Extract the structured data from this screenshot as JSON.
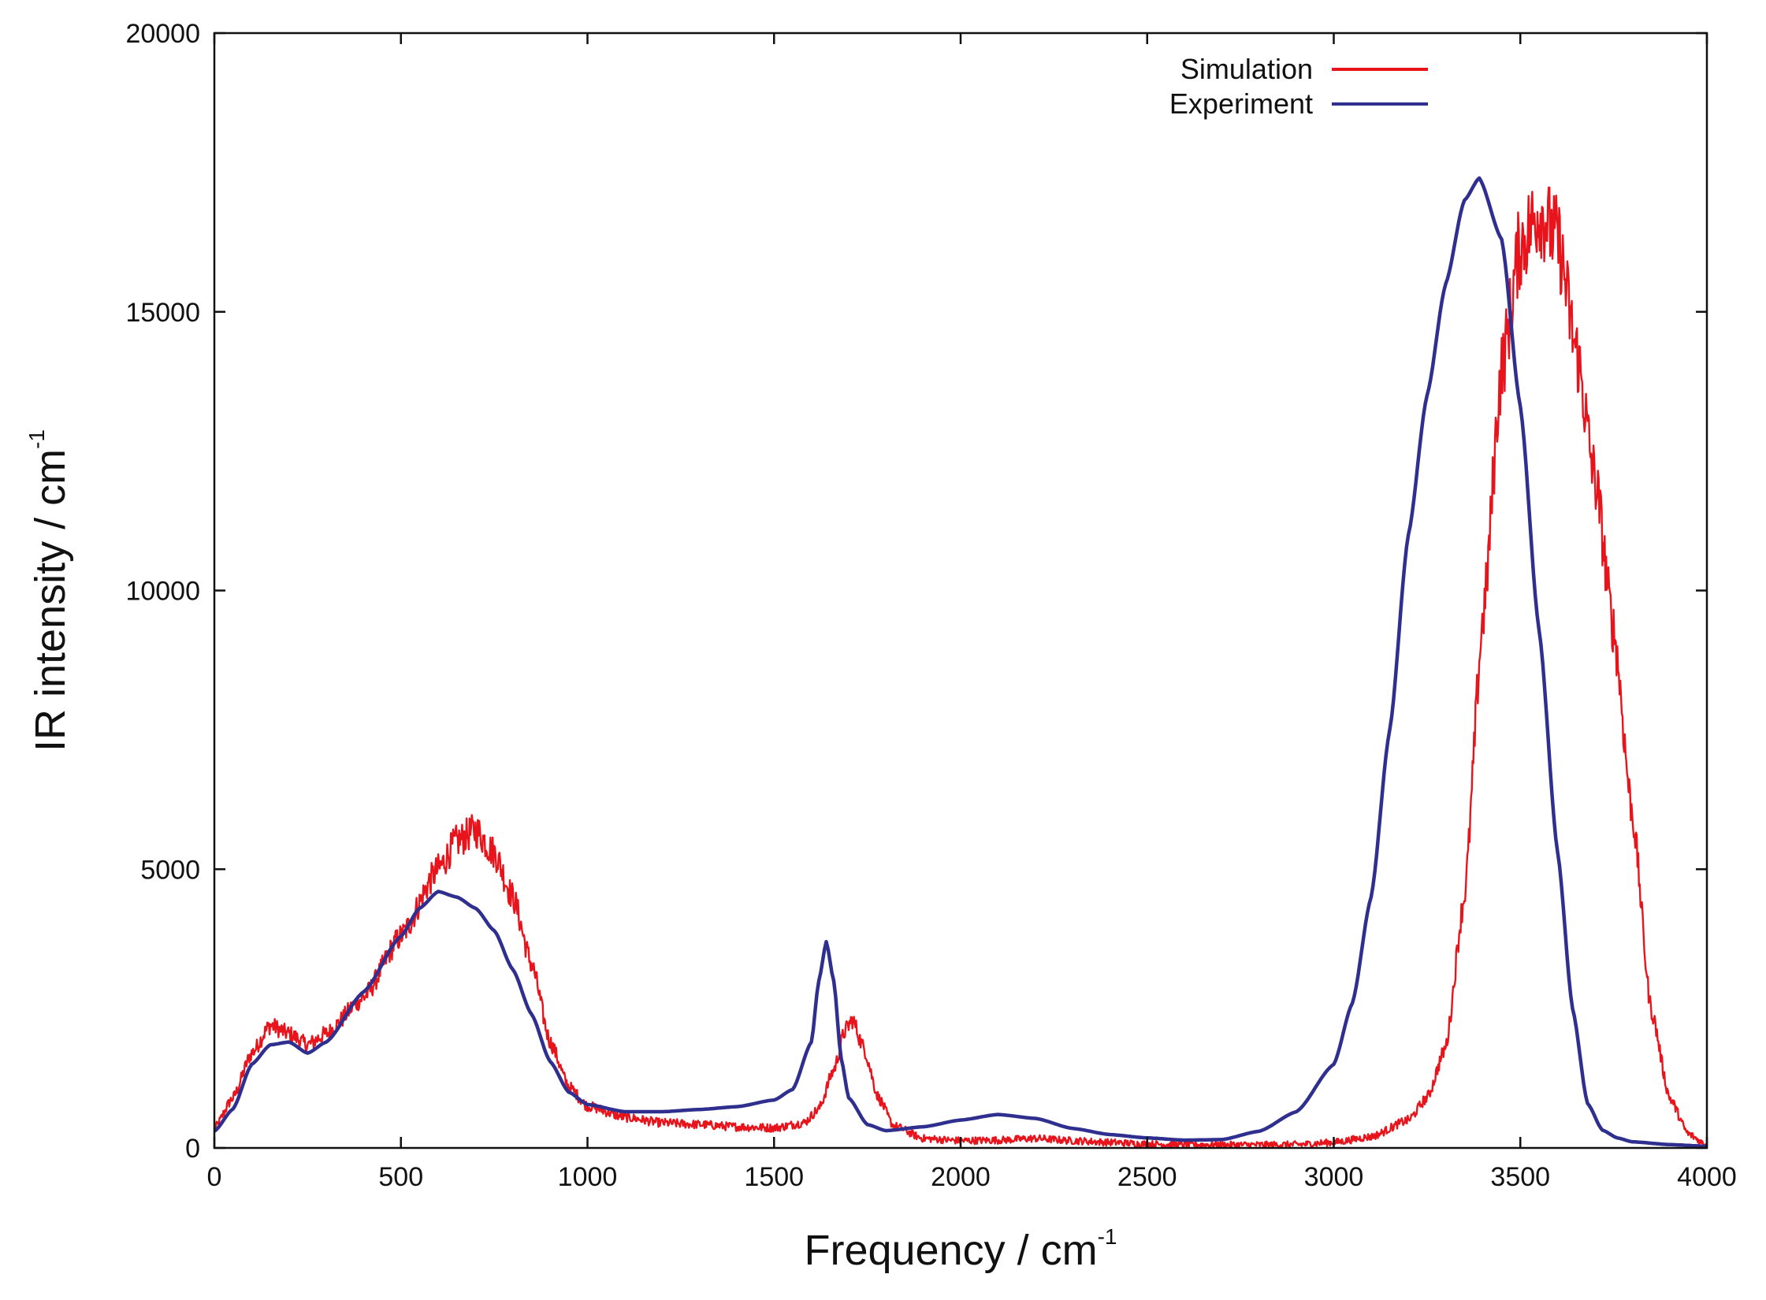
{
  "chart_data": {
    "type": "line",
    "xlabel": "Frequency / cm",
    "xlabel_sup": "-1",
    "ylabel": "IR intensity / cm",
    "ylabel_sup": "-1",
    "xlim": [
      0,
      4000
    ],
    "ylim": [
      0,
      20000
    ],
    "xticks": [
      0,
      500,
      1000,
      1500,
      2000,
      2500,
      3000,
      3500,
      4000
    ],
    "yticks": [
      0,
      5000,
      10000,
      15000,
      20000
    ],
    "grid": false,
    "legend_position": "top-right",
    "series": [
      {
        "name": "Simulation",
        "color": "#e8141c",
        "noisy": true,
        "x": [
          0,
          50,
          100,
          150,
          200,
          250,
          300,
          400,
          500,
          600,
          650,
          700,
          750,
          800,
          850,
          900,
          950,
          1000,
          1100,
          1200,
          1300,
          1400,
          1500,
          1580,
          1620,
          1660,
          1690,
          1710,
          1740,
          1780,
          1820,
          1900,
          2000,
          2100,
          2200,
          2300,
          2400,
          2500,
          2600,
          2700,
          2800,
          2900,
          3000,
          3100,
          3200,
          3250,
          3300,
          3350,
          3400,
          3450,
          3500,
          3550,
          3600,
          3650,
          3700,
          3750,
          3800,
          3850,
          3900,
          3950,
          4000
        ],
        "y": [
          350,
          900,
          1700,
          2200,
          2050,
          1850,
          2050,
          2700,
          3800,
          5000,
          5500,
          5700,
          5300,
          4500,
          3300,
          1900,
          1100,
          750,
          550,
          450,
          420,
          380,
          360,
          450,
          700,
          1400,
          2100,
          2300,
          1800,
          900,
          400,
          170,
          130,
          140,
          170,
          130,
          100,
          70,
          60,
          55,
          55,
          60,
          100,
          200,
          500,
          900,
          1800,
          4500,
          9500,
          14000,
          16200,
          16800,
          16300,
          14300,
          12000,
          9300,
          6000,
          2500,
          900,
          250,
          50
        ]
      },
      {
        "name": "Experiment",
        "color": "#2e2f8f",
        "noisy": false,
        "x": [
          0,
          50,
          100,
          150,
          200,
          250,
          300,
          400,
          500,
          550,
          600,
          650,
          700,
          750,
          800,
          850,
          900,
          950,
          1000,
          1100,
          1200,
          1300,
          1400,
          1500,
          1550,
          1600,
          1620,
          1640,
          1660,
          1680,
          1700,
          1750,
          1800,
          1900,
          2000,
          2100,
          2200,
          2300,
          2400,
          2500,
          2600,
          2700,
          2800,
          2900,
          3000,
          3050,
          3100,
          3150,
          3200,
          3250,
          3300,
          3350,
          3390,
          3450,
          3500,
          3550,
          3600,
          3640,
          3680,
          3720,
          3760,
          3800,
          3900,
          4000
        ],
        "y": [
          300,
          700,
          1500,
          1850,
          1900,
          1700,
          1900,
          2800,
          3800,
          4300,
          4600,
          4500,
          4300,
          3900,
          3200,
          2400,
          1550,
          1000,
          780,
          650,
          650,
          690,
          740,
          860,
          1050,
          1900,
          3000,
          3700,
          3000,
          1600,
          900,
          420,
          310,
          380,
          500,
          600,
          530,
          350,
          240,
          180,
          140,
          150,
          300,
          650,
          1500,
          2600,
          4500,
          7500,
          11000,
          13500,
          15500,
          17000,
          17400,
          16300,
          13300,
          9300,
          5300,
          2500,
          800,
          320,
          180,
          110,
          60,
          30
        ]
      }
    ]
  }
}
